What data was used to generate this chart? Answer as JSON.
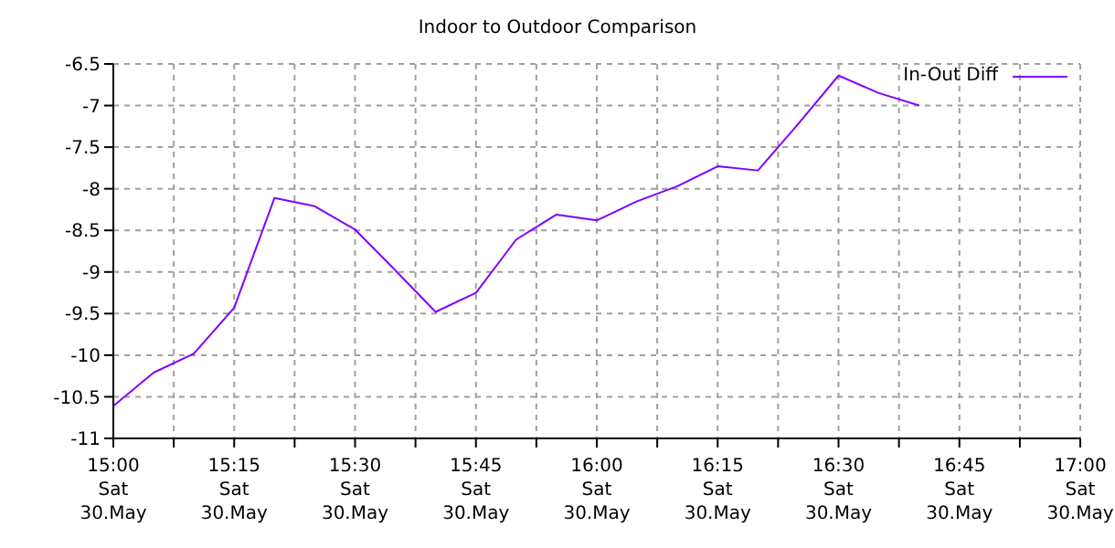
{
  "chart_data": {
    "type": "line",
    "title": "Indoor to Outdoor Comparison",
    "x": [
      "--05-30T15:00",
      "--05-30T15:05",
      "--05-30T15:10",
      "--05-30T15:15",
      "--05-30T15:20",
      "--05-30T15:25",
      "--05-30T15:30",
      "--05-30T15:35",
      "--05-30T15:40",
      "--05-30T15:45",
      "--05-30T15:50",
      "--05-30T15:55",
      "--05-30T16:00",
      "--05-30T16:05",
      "--05-30T16:10",
      "--05-30T16:15",
      "--05-30T16:20",
      "--05-30T16:25",
      "--05-30T16:30",
      "--05-30T16:35",
      "--05-30T16:40"
    ],
    "series": [
      {
        "name": "In-Out Diff",
        "color": "#8000ff",
        "values": [
          -10.61,
          -10.21,
          -9.98,
          -9.43,
          -8.11,
          -8.21,
          -8.49,
          -8.98,
          -9.48,
          -9.25,
          -8.61,
          -8.31,
          -8.38,
          -8.15,
          -7.97,
          -7.73,
          -7.78,
          -7.22,
          -6.64,
          -6.85,
          -7.0
        ]
      }
    ],
    "xlim": [
      "--05-30T15:00",
      "--05-30T17:00"
    ],
    "xticks": [
      {
        "value": "--05-30T15:00",
        "label": "15:00\nSat\n30.May"
      },
      {
        "value": "--05-30T15:07:30",
        "label": null
      },
      {
        "value": "--05-30T15:15",
        "label": "15:15\nSat\n30.May"
      },
      {
        "value": "--05-30T15:22:30",
        "label": null
      },
      {
        "value": "--05-30T15:30",
        "label": "15:30\nSat\n30.May"
      },
      {
        "value": "--05-30T15:37:30",
        "label": null
      },
      {
        "value": "--05-30T15:45",
        "label": "15:45\nSat\n30.May"
      },
      {
        "value": "--05-30T15:52:30",
        "label": null
      },
      {
        "value": "--05-30T16:00",
        "label": "16:00\nSat\n30.May"
      },
      {
        "value": "--05-30T16:07:30",
        "label": null
      },
      {
        "value": "--05-30T16:15",
        "label": "16:15\nSat\n30.May"
      },
      {
        "value": "--05-30T16:22:30",
        "label": null
      },
      {
        "value": "--05-30T16:30",
        "label": "16:30\nSat\n30.May"
      },
      {
        "value": "--05-30T16:37:30",
        "label": null
      },
      {
        "value": "--05-30T16:45",
        "label": "16:45\nSat\n30.May"
      },
      {
        "value": "--05-30T16:52:30",
        "label": null
      },
      {
        "value": "--05-30T17:00",
        "label": "17:00\nSat\n30.May"
      }
    ],
    "ylim": [
      -11,
      -6.5
    ],
    "yticks": [
      -11,
      -10.5,
      -10,
      -9.5,
      -9,
      -8.5,
      -8,
      -7.5,
      -7,
      -6.5
    ],
    "grid": true,
    "legend": "top right",
    "marker": "none",
    "line_style": "solid"
  }
}
